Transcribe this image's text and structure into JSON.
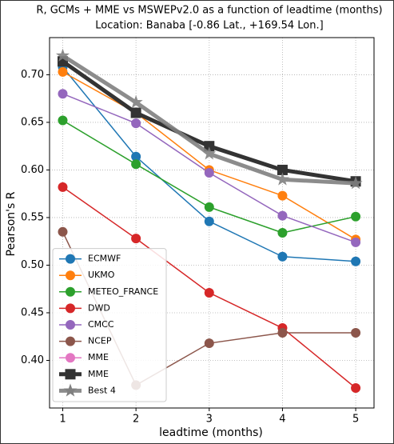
{
  "chart_data": {
    "type": "line",
    "title": "R, GCMs + MME vs MSWEPv2.0 as a function of leadtime (months)",
    "subtitle": "Location: Banaba [-0.86 Lat., +169.54 Lon.]",
    "x_label": "leadtime (months)",
    "y_label": "Pearson's R",
    "x": [
      1,
      2,
      3,
      4,
      5
    ],
    "xlim": [
      0.82,
      5.25
    ],
    "xticks": [
      1,
      2,
      3,
      4,
      5
    ],
    "ylim": [
      0.35,
      0.739
    ],
    "yticks": [
      {
        "value": 0.4,
        "label": "0.40"
      },
      {
        "value": 0.45,
        "label": "0.45"
      },
      {
        "value": 0.5,
        "label": "0.50"
      },
      {
        "value": 0.55,
        "label": "0.55"
      },
      {
        "value": 0.6,
        "label": "0.60"
      },
      {
        "value": 0.65,
        "label": "0.65"
      },
      {
        "value": 0.7,
        "label": "0.70"
      }
    ],
    "grid": true,
    "legend": "lower left",
    "series": [
      {
        "name": "ECMWF",
        "color": "#1f77b4",
        "marker": "o",
        "linewidth": 1.5,
        "values": [
          0.708,
          0.614,
          0.546,
          0.509,
          0.504
        ]
      },
      {
        "name": "UKMO",
        "color": "#ff7f0e",
        "marker": "o",
        "linewidth": 1.5,
        "values": [
          0.703,
          0.66,
          0.6,
          0.573,
          0.527
        ]
      },
      {
        "name": "METEO_FRANCE",
        "color": "#2ca02c",
        "marker": "o",
        "linewidth": 1.5,
        "values": [
          0.652,
          0.606,
          0.561,
          0.534,
          0.551
        ]
      },
      {
        "name": "DWD",
        "color": "#d62728",
        "marker": "o",
        "linewidth": 1.5,
        "values": [
          0.582,
          0.528,
          0.471,
          0.434,
          0.371
        ]
      },
      {
        "name": "CMCC",
        "color": "#9467bd",
        "marker": "o",
        "linewidth": 1.5,
        "values": [
          0.68,
          0.649,
          0.597,
          0.552,
          0.524
        ]
      },
      {
        "name": "NCEP",
        "color": "#8c564b",
        "marker": "o",
        "linewidth": 1.5,
        "values": [
          0.535,
          0.374,
          0.418,
          0.429,
          0.429
        ]
      },
      {
        "name": "MME",
        "color": "#e377c2",
        "marker": "o",
        "linewidth": 1.5,
        "values": [
          0.714,
          0.66,
          0.625,
          0.6,
          0.588
        ]
      },
      {
        "name": "MME",
        "color": "#333333",
        "marker": "s",
        "linewidth": 5,
        "values": [
          0.714,
          0.66,
          0.625,
          0.6,
          0.588
        ]
      },
      {
        "name": "Best 4",
        "color": "#808080",
        "marker": "*",
        "linewidth": 5,
        "values": [
          0.72,
          0.671,
          0.617,
          0.59,
          0.586
        ]
      }
    ]
  }
}
